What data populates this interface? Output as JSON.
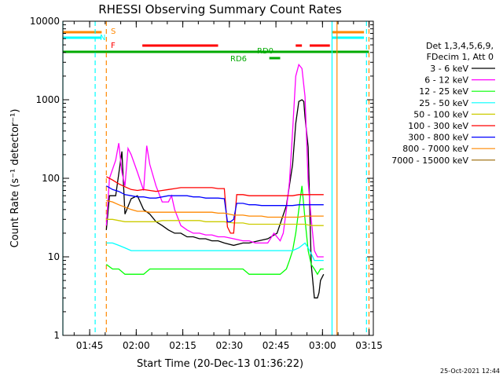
{
  "chart_data": {
    "type": "line",
    "title": "RHESSI Observing Summary Count Rates",
    "xlabel": "Start Time (20-Dec-13 01:36:22)",
    "ylabel": "Count Rate (s⁻¹ detector⁻¹)",
    "yscale": "log",
    "ylim": [
      1,
      10000
    ],
    "y_ticks": [
      1,
      10,
      100,
      1000,
      10000
    ],
    "y_tick_labels": [
      "1",
      "10",
      "100",
      "1000",
      "10000"
    ],
    "x_axis_unit": "minutes after 01:36:22",
    "xlim": [
      0,
      100
    ],
    "x_ticks": [
      8.63,
      23.63,
      38.63,
      53.63,
      68.63,
      83.63,
      98.63
    ],
    "x_tick_labels": [
      "01:45",
      "02:00",
      "02:15",
      "02:30",
      "02:45",
      "03:00",
      "03:15"
    ],
    "legend_header": [
      "Det 1,3,4,5,6,9,",
      "FDecim 1, Att 0"
    ],
    "legend_position": "right",
    "date_stamp": "25-Oct-2021 12:44",
    "flag_labels": {
      "s": "S",
      "n": "N",
      "f": "F",
      "rd0": "RD0",
      "rd6": "RD6"
    },
    "series": [
      {
        "name": "3 - 6 keV",
        "color": "#000000",
        "x": [
          14,
          15,
          17,
          19,
          20,
          22,
          24,
          26,
          28,
          30,
          32,
          34,
          36,
          38,
          40,
          42,
          44,
          46,
          48,
          50,
          52,
          55,
          58,
          60,
          63,
          66,
          69,
          72,
          74,
          75,
          76,
          77,
          77.6,
          78,
          79,
          80,
          81,
          82,
          82.5,
          83,
          84
        ],
        "y": [
          22,
          60,
          60,
          220,
          35,
          55,
          60,
          40,
          35,
          28,
          25,
          22,
          20,
          20,
          18,
          18,
          17,
          17,
          16,
          16,
          15,
          14,
          15,
          15,
          16,
          17,
          20,
          45,
          150,
          500,
          950,
          1000,
          950,
          600,
          250,
          8,
          3,
          3,
          3.5,
          5,
          6
        ]
      },
      {
        "name": "6 - 12 keV",
        "color": "#ff00ff",
        "x": [
          14,
          15,
          17,
          18,
          19,
          20,
          21,
          22,
          24,
          26,
          27,
          28,
          30,
          32,
          34,
          35,
          36,
          38,
          40,
          42,
          44,
          46,
          48,
          50,
          52,
          55,
          58,
          60,
          62,
          64,
          66,
          68,
          70,
          71,
          72,
          73,
          74,
          75,
          76,
          77,
          78,
          79,
          80,
          81,
          82,
          84
        ],
        "y": [
          25,
          100,
          170,
          280,
          120,
          80,
          240,
          200,
          120,
          70,
          260,
          150,
          80,
          50,
          50,
          60,
          40,
          25,
          22,
          20,
          20,
          19,
          19,
          18,
          18,
          17,
          16,
          16,
          15,
          15,
          15,
          20,
          16,
          20,
          40,
          90,
          400,
          2000,
          2800,
          2500,
          1100,
          90,
          30,
          12,
          10,
          10
        ]
      },
      {
        "name": "12 - 25 keV",
        "color": "#00ff00",
        "x": [
          14,
          16,
          18,
          20,
          22,
          24,
          26,
          28,
          30,
          32,
          34,
          36,
          38,
          40,
          42,
          44,
          46,
          48,
          50,
          52,
          55,
          58,
          60,
          62,
          64,
          66,
          68,
          70,
          72,
          73,
          74,
          75,
          76,
          77,
          78,
          79,
          80,
          81,
          82,
          83,
          84
        ],
        "y": [
          8,
          7,
          7,
          6,
          6,
          6,
          6,
          7,
          7,
          7,
          7,
          7,
          7,
          7,
          7,
          7,
          7,
          7,
          7,
          7,
          7,
          7,
          6,
          6,
          6,
          6,
          6,
          6,
          7,
          9,
          12,
          20,
          40,
          80,
          30,
          12,
          8,
          7,
          6,
          7,
          7
        ]
      },
      {
        "name": "25 - 50 keV",
        "color": "#00ffff",
        "x": [
          14,
          16,
          18,
          20,
          22,
          24,
          26,
          28,
          30,
          32,
          34,
          36,
          38,
          40,
          42,
          44,
          46,
          48,
          50,
          52,
          55,
          58,
          60,
          62,
          64,
          66,
          68,
          70,
          72,
          74,
          76,
          78,
          79,
          80,
          81,
          82,
          83,
          84
        ],
        "y": [
          15,
          15,
          14,
          13,
          12,
          12,
          12,
          12,
          12,
          12,
          12,
          12,
          12,
          12,
          12,
          12,
          12,
          12,
          12,
          12,
          12,
          12,
          12,
          12,
          12,
          12,
          12,
          12,
          12,
          12,
          13,
          15,
          13,
          11,
          9,
          9,
          9,
          9
        ]
      },
      {
        "name": "50 - 100 keV",
        "color": "#cccc00",
        "x": [
          14,
          16,
          18,
          20,
          22,
          24,
          26,
          28,
          30,
          32,
          34,
          36,
          38,
          40,
          42,
          44,
          46,
          48,
          50,
          52,
          55,
          58,
          60,
          62,
          64,
          66,
          68,
          70,
          72,
          74,
          76,
          78,
          80,
          82,
          84
        ],
        "y": [
          30,
          30,
          29,
          28,
          28,
          28,
          28,
          28,
          28,
          29,
          29,
          29,
          29,
          29,
          29,
          29,
          28,
          28,
          28,
          28,
          27,
          27,
          26,
          26,
          26,
          26,
          26,
          26,
          26,
          26,
          26,
          26,
          25,
          25,
          25
        ]
      },
      {
        "name": "100 - 300 keV",
        "color": "#ff0000",
        "x": [
          14,
          16,
          18,
          20,
          22,
          24,
          26,
          28,
          30,
          32,
          34,
          36,
          38,
          40,
          42,
          44,
          46,
          48,
          50,
          52,
          53,
          54,
          55,
          56,
          58,
          60,
          62,
          64,
          66,
          68,
          70,
          72,
          74,
          76,
          78,
          80,
          82,
          84
        ],
        "y": [
          105,
          95,
          85,
          78,
          72,
          70,
          72,
          70,
          68,
          70,
          72,
          74,
          76,
          76,
          76,
          76,
          76,
          76,
          74,
          74,
          24,
          20,
          20,
          62,
          62,
          60,
          60,
          60,
          60,
          60,
          60,
          60,
          60,
          62,
          62,
          62,
          62,
          62
        ]
      },
      {
        "name": "300 - 800 keV",
        "color": "#0000ff",
        "x": [
          14,
          16,
          18,
          20,
          22,
          24,
          26,
          28,
          30,
          32,
          34,
          36,
          38,
          40,
          42,
          44,
          46,
          48,
          50,
          52,
          53,
          54,
          55,
          56,
          58,
          60,
          62,
          64,
          66,
          68,
          70,
          72,
          74,
          76,
          78,
          80,
          82,
          84
        ],
        "y": [
          80,
          72,
          68,
          62,
          60,
          58,
          58,
          56,
          56,
          58,
          60,
          60,
          60,
          60,
          58,
          58,
          56,
          56,
          56,
          55,
          28,
          28,
          30,
          48,
          48,
          46,
          46,
          45,
          45,
          45,
          45,
          45,
          45,
          46,
          46,
          46,
          46,
          46
        ]
      },
      {
        "name": "800 - 7000 keV",
        "color": "#ff8800",
        "x": [
          14,
          16,
          18,
          20,
          22,
          24,
          26,
          28,
          30,
          32,
          34,
          36,
          38,
          40,
          42,
          44,
          46,
          48,
          50,
          52,
          55,
          58,
          60,
          62,
          64,
          66,
          68,
          70,
          72,
          74,
          76,
          78,
          80,
          82,
          84
        ],
        "y": [
          52,
          50,
          46,
          43,
          40,
          38,
          38,
          37,
          37,
          37,
          37,
          37,
          37,
          37,
          37,
          37,
          37,
          37,
          36,
          36,
          34,
          34,
          33,
          33,
          33,
          32,
          32,
          32,
          32,
          32,
          32,
          33,
          33,
          33,
          33
        ]
      },
      {
        "name": "7000 - 15000 keV",
        "color": "#996600",
        "x": [],
        "y": []
      }
    ],
    "flags": {
      "s": {
        "color": "#ff8800",
        "segments": [
          [
            0,
            12.5
          ],
          [
            86.7,
            97
          ]
        ]
      },
      "n": {
        "color": "#00ffff",
        "segments": [
          [
            0,
            12.5
          ],
          [
            86.7,
            97
          ]
        ]
      },
      "f": {
        "color": "#ff0000",
        "segments": [
          [
            25.6,
            50
          ],
          [
            75,
            77
          ],
          [
            79.5,
            86
          ]
        ]
      },
      "rd0": {
        "color": "#00aa00",
        "segments": [
          [
            0,
            98.6
          ]
        ]
      },
      "rd6": {
        "color": "#00aa00",
        "segments": [
          [
            66.5,
            70
          ]
        ]
      }
    },
    "vertical_lines": [
      {
        "x": 0,
        "color": "#00ffff",
        "style": "solid"
      },
      {
        "x": 10.4,
        "color": "#00ffff",
        "style": "dashed"
      },
      {
        "x": 14,
        "color": "#ff8800",
        "style": "dashed"
      },
      {
        "x": 86.7,
        "color": "#00ffff",
        "style": "solid"
      },
      {
        "x": 88.3,
        "color": "#ff8800",
        "style": "solid"
      },
      {
        "x": 97.8,
        "color": "#00ffff",
        "style": "dashed"
      },
      {
        "x": 98.6,
        "color": "#ff8800",
        "style": "dashed"
      }
    ]
  }
}
